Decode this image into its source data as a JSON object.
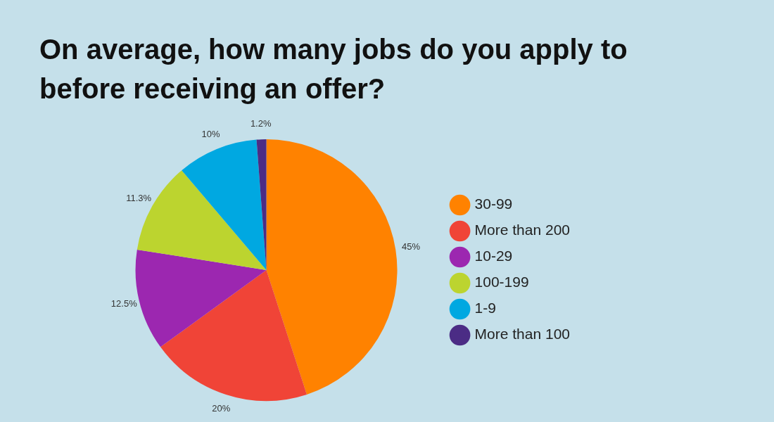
{
  "chart_data": {
    "type": "pie",
    "title": "On average, how many jobs do you apply to before receiving an offer?",
    "categories": [
      "30-99",
      "More than 200",
      "10-29",
      "100-199",
      "1-9",
      "More than 100"
    ],
    "values": [
      45,
      20,
      12.5,
      11.3,
      10,
      1.2
    ],
    "value_labels": [
      "45%",
      "20%",
      "12.5%",
      "11.3%",
      "10%",
      "1.2%"
    ],
    "colors": [
      "#ff8200",
      "#f04437",
      "#9c27b0",
      "#bcd42f",
      "#00a8e1",
      "#4b2c85"
    ],
    "legend": "right"
  }
}
